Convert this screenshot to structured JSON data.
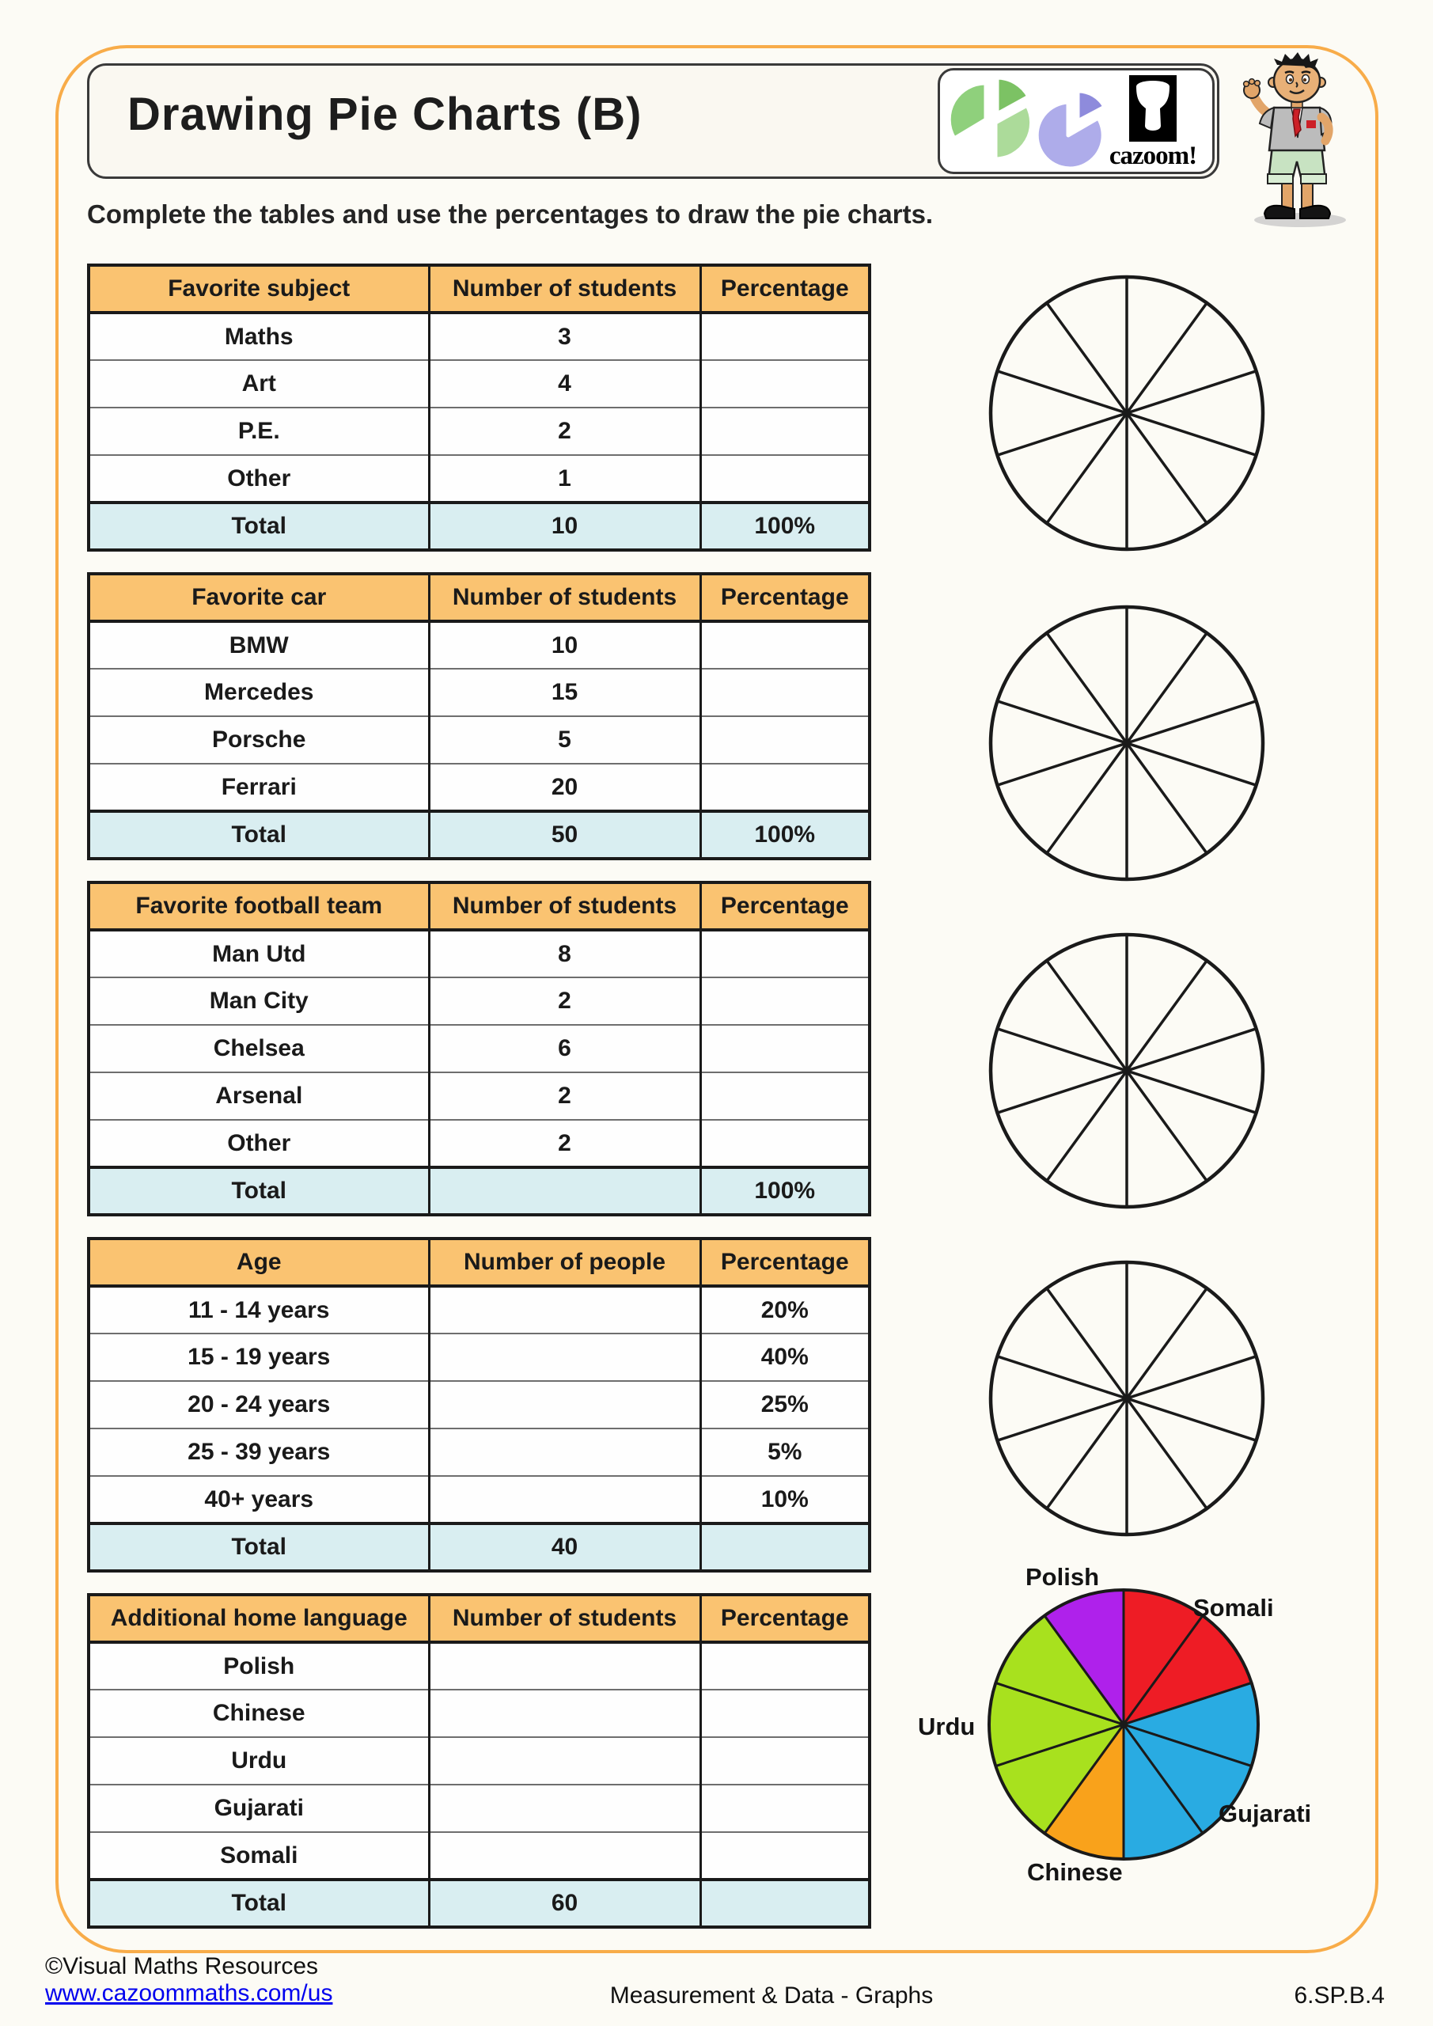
{
  "header": {
    "title": "Drawing Pie Charts (B)",
    "brand": "cazoom!"
  },
  "instruction": "Complete the tables and use the percentages to draw the pie charts.",
  "tables": [
    {
      "headers": [
        "Favorite subject",
        "Number of students",
        "Percentage"
      ],
      "rows": [
        [
          "Maths",
          "3",
          ""
        ],
        [
          "Art",
          "4",
          ""
        ],
        [
          "P.E.",
          "2",
          ""
        ],
        [
          "Other",
          "1",
          ""
        ]
      ],
      "total": [
        "Total",
        "10",
        "100%"
      ]
    },
    {
      "headers": [
        "Favorite car",
        "Number of students",
        "Percentage"
      ],
      "rows": [
        [
          "BMW",
          "10",
          ""
        ],
        [
          "Mercedes",
          "15",
          ""
        ],
        [
          "Porsche",
          "5",
          ""
        ],
        [
          "Ferrari",
          "20",
          ""
        ]
      ],
      "total": [
        "Total",
        "50",
        "100%"
      ]
    },
    {
      "headers": [
        "Favorite football team",
        "Number of students",
        "Percentage"
      ],
      "rows": [
        [
          "Man Utd",
          "8",
          ""
        ],
        [
          "Man City",
          "2",
          ""
        ],
        [
          "Chelsea",
          "6",
          ""
        ],
        [
          "Arsenal",
          "2",
          ""
        ],
        [
          "Other",
          "2",
          ""
        ]
      ],
      "total": [
        "Total",
        "",
        "100%"
      ]
    },
    {
      "headers": [
        "Age",
        "Number of people",
        "Percentage"
      ],
      "rows": [
        [
          "11 - 14 years",
          "",
          "20%"
        ],
        [
          "15 - 19 years",
          "",
          "40%"
        ],
        [
          "20 - 24 years",
          "",
          "25%"
        ],
        [
          "25 - 39 years",
          "",
          "5%"
        ],
        [
          "40+ years",
          "",
          "10%"
        ]
      ],
      "total": [
        "Total",
        "40",
        ""
      ]
    },
    {
      "headers": [
        "Additional home language",
        "Number of students",
        "Percentage"
      ],
      "rows": [
        [
          "Polish",
          "",
          ""
        ],
        [
          "Chinese",
          "",
          ""
        ],
        [
          "Urdu",
          "",
          ""
        ],
        [
          "Gujarati",
          "",
          ""
        ],
        [
          "Somali",
          "",
          ""
        ]
      ],
      "total": [
        "Total",
        "60",
        ""
      ]
    }
  ],
  "chart_data": [
    {
      "type": "pie",
      "title": "Additional home language answer pie chart",
      "start": "top",
      "direction": "clockwise",
      "divisions": 10,
      "slices": [
        {
          "label": "Somali",
          "sectors": 2,
          "percent": 20,
          "color": "#EE1C25"
        },
        {
          "label": "Gujarati",
          "sectors": 3,
          "percent": 30,
          "color": "#29ABE2"
        },
        {
          "label": "Chinese",
          "sectors": 1,
          "percent": 10,
          "color": "#F9A21B"
        },
        {
          "label": "Urdu",
          "sectors": 3,
          "percent": 30,
          "color": "#A8E11E"
        },
        {
          "label": "Polish",
          "sectors": 1,
          "percent": 10,
          "color": "#AF21EB"
        }
      ]
    },
    {
      "type": "pie-template",
      "count": 4,
      "divisions": 10
    }
  ],
  "footer": {
    "copyright": "©Visual Maths Resources",
    "url": "www.cazoommaths.com/us",
    "center": "Measurement & Data - Graphs",
    "code": "6.SP.B.4"
  }
}
